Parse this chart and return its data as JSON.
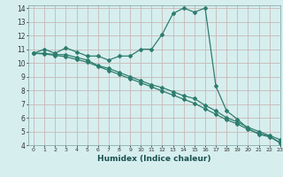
{
  "title": "",
  "xlabel": "Humidex (Indice chaleur)",
  "ylabel": "",
  "xlim": [
    -0.5,
    23
  ],
  "ylim": [
    4,
    14.2
  ],
  "xticks": [
    0,
    1,
    2,
    3,
    4,
    5,
    6,
    7,
    8,
    9,
    10,
    11,
    12,
    13,
    14,
    15,
    16,
    17,
    18,
    19,
    20,
    21,
    22,
    23
  ],
  "yticks": [
    4,
    5,
    6,
    7,
    8,
    9,
    10,
    11,
    12,
    13,
    14
  ],
  "bg_color": "#d6eeee",
  "grid_color": "#c8b8b8",
  "line_color": "#2e7d6e",
  "line1_x": [
    0,
    1,
    2,
    3,
    4,
    5,
    6,
    7,
    8,
    9,
    10,
    11,
    12,
    13,
    14,
    15,
    16,
    17,
    18,
    19,
    20,
    21,
    22,
    23
  ],
  "line1_y": [
    10.7,
    11.0,
    10.7,
    11.1,
    10.8,
    10.5,
    10.5,
    10.2,
    10.5,
    10.5,
    11.0,
    11.0,
    12.1,
    13.6,
    14.0,
    13.7,
    14.0,
    8.3,
    6.5,
    5.9,
    5.2,
    4.8,
    4.6,
    4.2
  ],
  "line2_x": [
    0,
    1,
    2,
    3,
    4,
    5,
    6,
    7,
    8,
    9,
    10,
    11,
    12,
    13,
    14,
    15,
    16,
    17,
    18,
    19,
    20,
    21,
    22,
    23
  ],
  "line2_y": [
    10.7,
    10.7,
    10.6,
    10.6,
    10.4,
    10.2,
    9.8,
    9.6,
    9.3,
    9.0,
    8.7,
    8.4,
    8.2,
    7.9,
    7.6,
    7.4,
    6.9,
    6.5,
    6.0,
    5.7,
    5.3,
    5.0,
    4.7,
    4.4
  ],
  "line3_x": [
    0,
    1,
    2,
    3,
    4,
    5,
    6,
    7,
    8,
    9,
    10,
    11,
    12,
    13,
    14,
    15,
    16,
    17,
    18,
    19,
    20,
    21,
    22,
    23
  ],
  "line3_y": [
    10.7,
    10.65,
    10.55,
    10.45,
    10.25,
    10.05,
    9.75,
    9.45,
    9.15,
    8.85,
    8.55,
    8.25,
    7.95,
    7.65,
    7.35,
    7.05,
    6.65,
    6.25,
    5.85,
    5.55,
    5.15,
    4.85,
    4.65,
    4.15
  ]
}
